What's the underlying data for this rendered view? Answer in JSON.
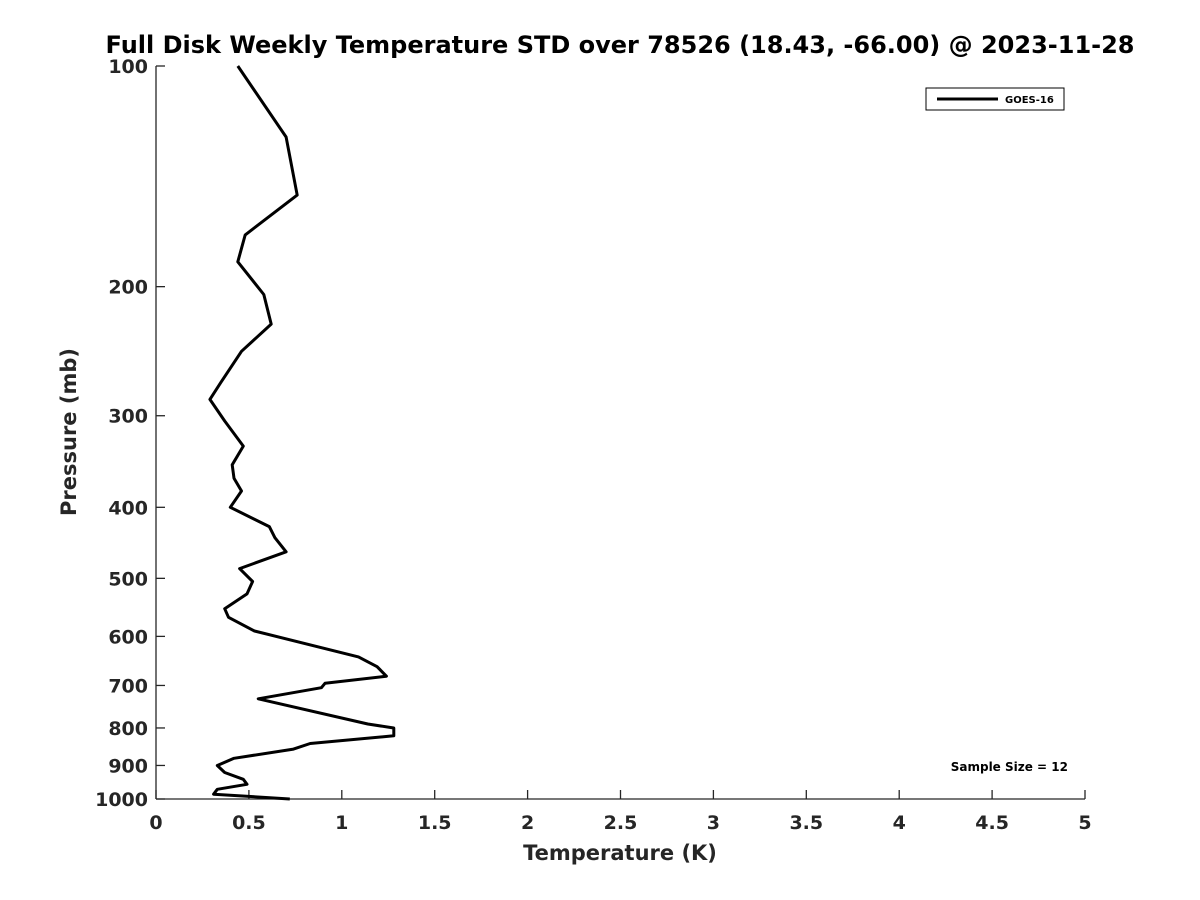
{
  "chart_data": {
    "type": "line",
    "title": "Full Disk Weekly Temperature STD over 78526 (18.43, -66.00) @ 2023-11-28",
    "xlabel": "Temperature (K)",
    "ylabel": "Pressure (mb)",
    "xlim": [
      0,
      5
    ],
    "ylim": [
      100,
      1000
    ],
    "y_scale": "log",
    "y_reversed": true,
    "grid": false,
    "x_ticks": [
      0,
      0.5,
      1,
      1.5,
      2,
      2.5,
      3,
      3.5,
      4,
      4.5,
      5
    ],
    "x_tick_labels": [
      "0",
      "0.5",
      "1",
      "1.5",
      "2",
      "2.5",
      "3",
      "3.5",
      "4",
      "4.5",
      "5"
    ],
    "y_ticks": [
      100,
      200,
      300,
      400,
      500,
      600,
      700,
      800,
      900,
      1000
    ],
    "y_tick_labels": [
      "100",
      "200",
      "300",
      "400",
      "500",
      "600",
      "700",
      "800",
      "900",
      "1000"
    ],
    "legend_position": "top-right",
    "annotation": "Sample Size = 12",
    "series": [
      {
        "name": "GOES-16",
        "color": "#000000",
        "points": [
          [
            0.44,
            100
          ],
          [
            0.7,
            125
          ],
          [
            0.76,
            150
          ],
          [
            0.48,
            170
          ],
          [
            0.44,
            185
          ],
          [
            0.58,
            205
          ],
          [
            0.62,
            225
          ],
          [
            0.46,
            245
          ],
          [
            0.35,
            270
          ],
          [
            0.29,
            285
          ],
          [
            0.37,
            305
          ],
          [
            0.47,
            330
          ],
          [
            0.41,
            350
          ],
          [
            0.42,
            365
          ],
          [
            0.46,
            380
          ],
          [
            0.4,
            400
          ],
          [
            0.61,
            425
          ],
          [
            0.64,
            440
          ],
          [
            0.7,
            460
          ],
          [
            0.45,
            485
          ],
          [
            0.52,
            505
          ],
          [
            0.49,
            525
          ],
          [
            0.37,
            550
          ],
          [
            0.39,
            565
          ],
          [
            0.53,
            590
          ],
          [
            1.09,
            640
          ],
          [
            1.19,
            660
          ],
          [
            1.24,
            680
          ],
          [
            0.91,
            695
          ],
          [
            0.89,
            705
          ],
          [
            0.55,
            730
          ],
          [
            1.14,
            790
          ],
          [
            1.28,
            800
          ],
          [
            1.28,
            820
          ],
          [
            0.83,
            840
          ],
          [
            0.74,
            855
          ],
          [
            0.42,
            880
          ],
          [
            0.33,
            900
          ],
          [
            0.37,
            920
          ],
          [
            0.47,
            940
          ],
          [
            0.49,
            955
          ],
          [
            0.33,
            970
          ],
          [
            0.31,
            985
          ],
          [
            0.72,
            1000
          ]
        ]
      }
    ]
  }
}
